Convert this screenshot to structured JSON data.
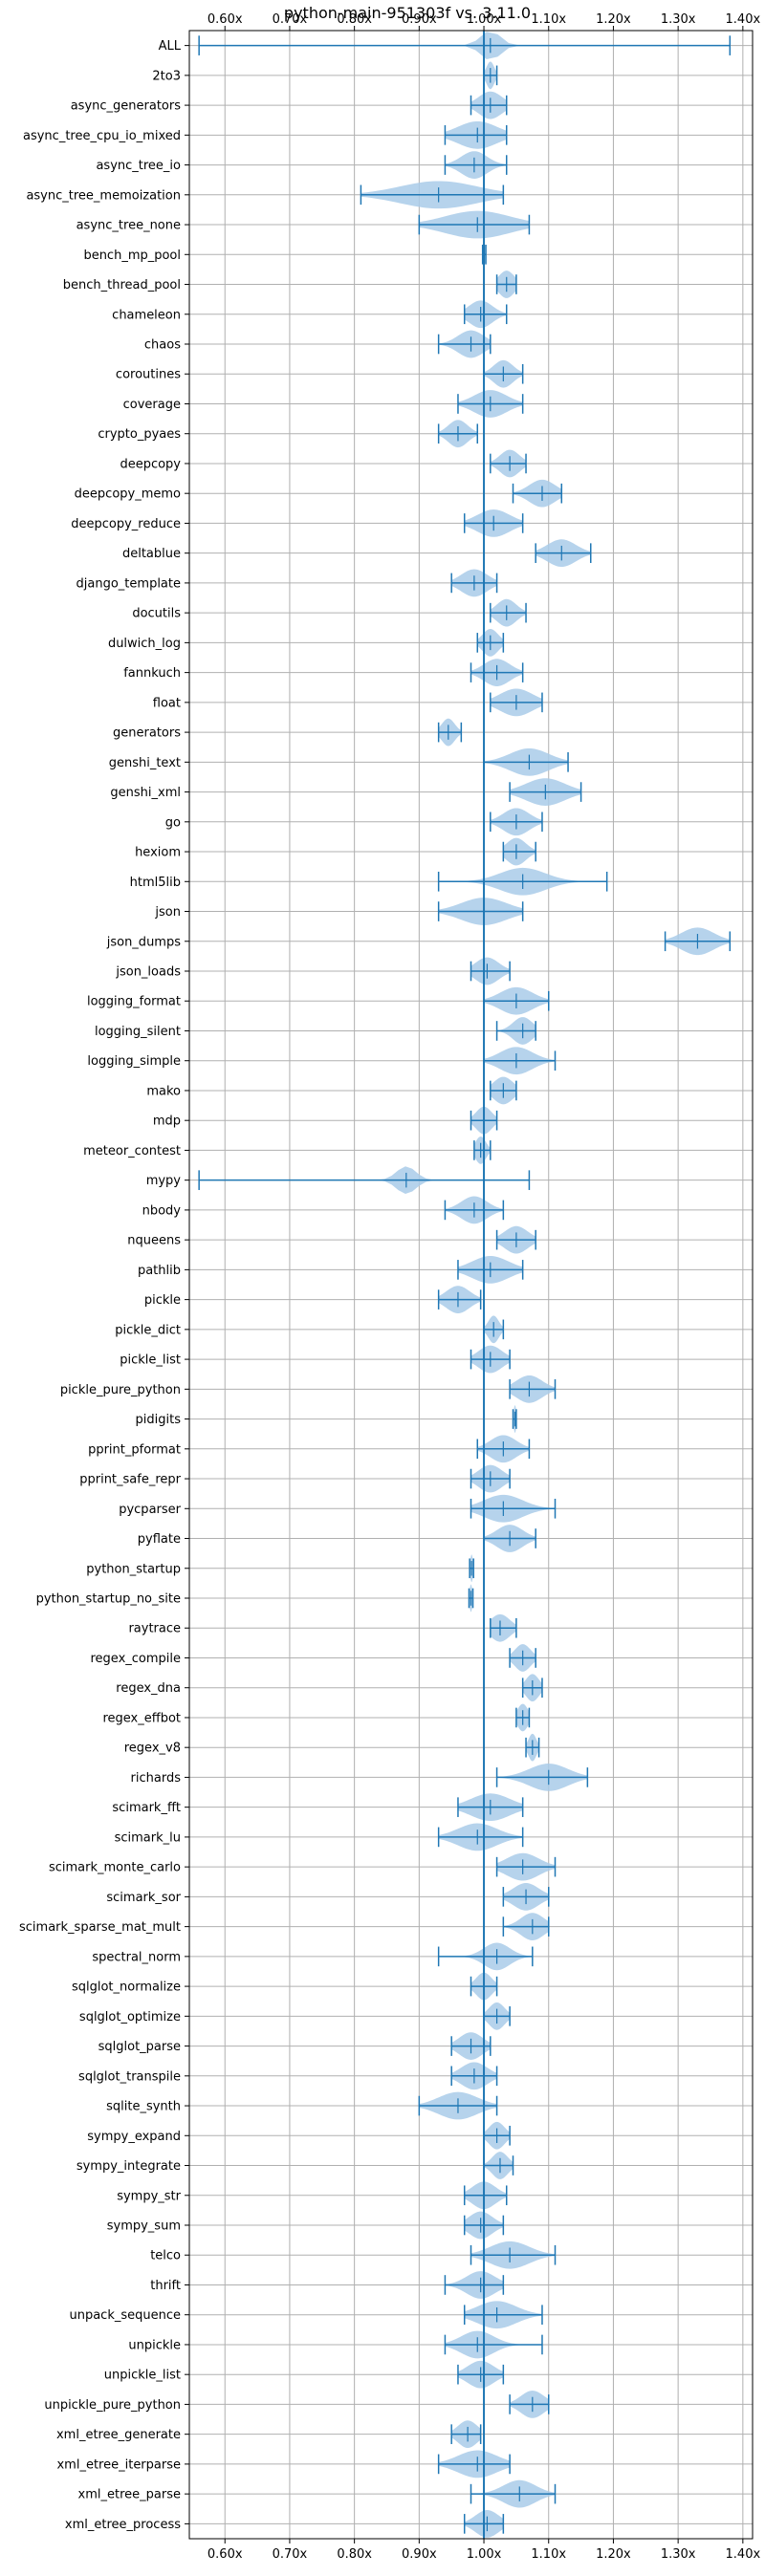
{
  "chart_data": {
    "type": "violin",
    "title": "python-main-951303f vs. 3.11.0",
    "orientation": "horizontal",
    "xlabel": "",
    "ylabel": "",
    "xlim": [
      0.545,
      1.415
    ],
    "xticks": [
      0.6,
      0.7,
      0.8,
      0.9,
      1.0,
      1.1,
      1.2,
      1.3,
      1.4
    ],
    "xtick_labels": [
      "0.60x",
      "0.70x",
      "0.80x",
      "0.90x",
      "1.00x",
      "1.10x",
      "1.20x",
      "1.30x",
      "1.40x"
    ],
    "xticks_position": "top-and-bottom",
    "grid": true,
    "reference_line": 1.0,
    "colors": {
      "violin_fill": "#a9cbe9",
      "accent": "#1f77b4",
      "grid": "#b0b0b0"
    },
    "benchmarks": [
      {
        "name": "ALL",
        "min": 0.56,
        "max": 1.38,
        "median": 1.01,
        "spread": 0.015
      },
      {
        "name": "2to3",
        "min": 1.0,
        "max": 1.02,
        "median": 1.01,
        "spread": 0.006
      },
      {
        "name": "async_generators",
        "min": 0.98,
        "max": 1.035,
        "median": 1.01,
        "spread": 0.018
      },
      {
        "name": "async_tree_cpu_io_mixed",
        "min": 0.94,
        "max": 1.035,
        "median": 0.99,
        "spread": 0.03
      },
      {
        "name": "async_tree_io",
        "min": 0.94,
        "max": 1.035,
        "median": 0.985,
        "spread": 0.02
      },
      {
        "name": "async_tree_memoization",
        "min": 0.81,
        "max": 1.03,
        "median": 0.93,
        "spread": 0.06
      },
      {
        "name": "async_tree_none",
        "min": 0.9,
        "max": 1.07,
        "median": 0.99,
        "spread": 0.05
      },
      {
        "name": "bench_mp_pool",
        "min": 0.998,
        "max": 1.003,
        "median": 1.0,
        "spread": 0.002
      },
      {
        "name": "bench_thread_pool",
        "min": 1.02,
        "max": 1.05,
        "median": 1.035,
        "spread": 0.012
      },
      {
        "name": "chameleon",
        "min": 0.97,
        "max": 1.035,
        "median": 0.995,
        "spread": 0.018
      },
      {
        "name": "chaos",
        "min": 0.93,
        "max": 1.01,
        "median": 0.98,
        "spread": 0.02
      },
      {
        "name": "coroutines",
        "min": 1.0,
        "max": 1.06,
        "median": 1.03,
        "spread": 0.015
      },
      {
        "name": "coverage",
        "min": 0.96,
        "max": 1.06,
        "median": 1.01,
        "spread": 0.025
      },
      {
        "name": "crypto_pyaes",
        "min": 0.93,
        "max": 0.99,
        "median": 0.96,
        "spread": 0.015
      },
      {
        "name": "deepcopy",
        "min": 1.01,
        "max": 1.065,
        "median": 1.04,
        "spread": 0.015
      },
      {
        "name": "deepcopy_memo",
        "min": 1.045,
        "max": 1.12,
        "median": 1.09,
        "spread": 0.02
      },
      {
        "name": "deepcopy_reduce",
        "min": 0.97,
        "max": 1.06,
        "median": 1.015,
        "spread": 0.025
      },
      {
        "name": "deltablue",
        "min": 1.08,
        "max": 1.165,
        "median": 1.12,
        "spread": 0.022
      },
      {
        "name": "django_template",
        "min": 0.95,
        "max": 1.02,
        "median": 0.985,
        "spread": 0.02
      },
      {
        "name": "docutils",
        "min": 1.01,
        "max": 1.065,
        "median": 1.035,
        "spread": 0.015
      },
      {
        "name": "dulwich_log",
        "min": 0.99,
        "max": 1.03,
        "median": 1.01,
        "spread": 0.012
      },
      {
        "name": "fannkuch",
        "min": 0.98,
        "max": 1.06,
        "median": 1.02,
        "spread": 0.02
      },
      {
        "name": "float",
        "min": 1.01,
        "max": 1.09,
        "median": 1.05,
        "spread": 0.025
      },
      {
        "name": "generators",
        "min": 0.93,
        "max": 0.965,
        "median": 0.945,
        "spread": 0.01
      },
      {
        "name": "genshi_text",
        "min": 1.0,
        "max": 1.13,
        "median": 1.07,
        "spread": 0.03
      },
      {
        "name": "genshi_xml",
        "min": 1.04,
        "max": 1.15,
        "median": 1.095,
        "spread": 0.03
      },
      {
        "name": "go",
        "min": 1.01,
        "max": 1.09,
        "median": 1.05,
        "spread": 0.02
      },
      {
        "name": "hexiom",
        "min": 1.03,
        "max": 1.08,
        "median": 1.05,
        "spread": 0.015
      },
      {
        "name": "html5lib",
        "min": 0.93,
        "max": 1.19,
        "median": 1.06,
        "spread": 0.035
      },
      {
        "name": "json",
        "min": 0.93,
        "max": 1.06,
        "median": 1.0,
        "spread": 0.035
      },
      {
        "name": "json_dumps",
        "min": 1.28,
        "max": 1.38,
        "median": 1.33,
        "spread": 0.025
      },
      {
        "name": "json_loads",
        "min": 0.98,
        "max": 1.04,
        "median": 1.005,
        "spread": 0.018
      },
      {
        "name": "logging_format",
        "min": 1.0,
        "max": 1.1,
        "median": 1.05,
        "spread": 0.025
      },
      {
        "name": "logging_silent",
        "min": 1.02,
        "max": 1.08,
        "median": 1.06,
        "spread": 0.015
      },
      {
        "name": "logging_simple",
        "min": 1.0,
        "max": 1.11,
        "median": 1.05,
        "spread": 0.025
      },
      {
        "name": "mako",
        "min": 1.01,
        "max": 1.05,
        "median": 1.03,
        "spread": 0.015
      },
      {
        "name": "mdp",
        "min": 0.98,
        "max": 1.02,
        "median": 1.0,
        "spread": 0.012
      },
      {
        "name": "meteor_contest",
        "min": 0.985,
        "max": 1.01,
        "median": 0.995,
        "spread": 0.008
      },
      {
        "name": "mypy",
        "min": 0.56,
        "max": 1.07,
        "median": 0.88,
        "spread": 0.015
      },
      {
        "name": "nbody",
        "min": 0.94,
        "max": 1.03,
        "median": 0.985,
        "spread": 0.02
      },
      {
        "name": "nqueens",
        "min": 1.02,
        "max": 1.08,
        "median": 1.05,
        "spread": 0.018
      },
      {
        "name": "pathlib",
        "min": 0.96,
        "max": 1.06,
        "median": 1.01,
        "spread": 0.028
      },
      {
        "name": "pickle",
        "min": 0.93,
        "max": 0.995,
        "median": 0.96,
        "spread": 0.018
      },
      {
        "name": "pickle_dict",
        "min": 1.0,
        "max": 1.03,
        "median": 1.015,
        "spread": 0.008
      },
      {
        "name": "pickle_list",
        "min": 0.98,
        "max": 1.04,
        "median": 1.01,
        "spread": 0.018
      },
      {
        "name": "pickle_pure_python",
        "min": 1.04,
        "max": 1.11,
        "median": 1.07,
        "spread": 0.02
      },
      {
        "name": "pidigits",
        "min": 1.045,
        "max": 1.05,
        "median": 1.048,
        "spread": 0.002
      },
      {
        "name": "pprint_pformat",
        "min": 0.99,
        "max": 1.07,
        "median": 1.03,
        "spread": 0.02
      },
      {
        "name": "pprint_safe_repr",
        "min": 0.98,
        "max": 1.04,
        "median": 1.01,
        "spread": 0.018
      },
      {
        "name": "pycparser",
        "min": 0.98,
        "max": 1.11,
        "median": 1.03,
        "spread": 0.03
      },
      {
        "name": "pyflate",
        "min": 1.0,
        "max": 1.08,
        "median": 1.04,
        "spread": 0.02
      },
      {
        "name": "python_startup",
        "min": 0.978,
        "max": 0.984,
        "median": 0.981,
        "spread": 0.002
      },
      {
        "name": "python_startup_no_site",
        "min": 0.977,
        "max": 0.983,
        "median": 0.98,
        "spread": 0.002
      },
      {
        "name": "raytrace",
        "min": 1.01,
        "max": 1.05,
        "median": 1.025,
        "spread": 0.015
      },
      {
        "name": "regex_compile",
        "min": 1.04,
        "max": 1.08,
        "median": 1.06,
        "spread": 0.012
      },
      {
        "name": "regex_dna",
        "min": 1.06,
        "max": 1.09,
        "median": 1.075,
        "spread": 0.01
      },
      {
        "name": "regex_effbot",
        "min": 1.05,
        "max": 1.07,
        "median": 1.06,
        "spread": 0.008
      },
      {
        "name": "regex_v8",
        "min": 1.065,
        "max": 1.085,
        "median": 1.075,
        "spread": 0.006
      },
      {
        "name": "richards",
        "min": 1.02,
        "max": 1.16,
        "median": 1.1,
        "spread": 0.03
      },
      {
        "name": "scimark_fft",
        "min": 0.96,
        "max": 1.06,
        "median": 1.01,
        "spread": 0.03
      },
      {
        "name": "scimark_lu",
        "min": 0.93,
        "max": 1.06,
        "median": 0.99,
        "spread": 0.03
      },
      {
        "name": "scimark_monte_carlo",
        "min": 1.02,
        "max": 1.11,
        "median": 1.06,
        "spread": 0.025
      },
      {
        "name": "scimark_sor",
        "min": 1.03,
        "max": 1.1,
        "median": 1.065,
        "spread": 0.02
      },
      {
        "name": "scimark_sparse_mat_mult",
        "min": 1.03,
        "max": 1.1,
        "median": 1.075,
        "spread": 0.018
      },
      {
        "name": "spectral_norm",
        "min": 0.93,
        "max": 1.075,
        "median": 1.02,
        "spread": 0.02
      },
      {
        "name": "sqlglot_normalize",
        "min": 0.98,
        "max": 1.02,
        "median": 1.0,
        "spread": 0.012
      },
      {
        "name": "sqlglot_optimize",
        "min": 1.0,
        "max": 1.04,
        "median": 1.02,
        "spread": 0.012
      },
      {
        "name": "sqlglot_parse",
        "min": 0.95,
        "max": 1.01,
        "median": 0.98,
        "spread": 0.018
      },
      {
        "name": "sqlglot_transpile",
        "min": 0.95,
        "max": 1.02,
        "median": 0.985,
        "spread": 0.02
      },
      {
        "name": "sqlite_synth",
        "min": 0.9,
        "max": 1.02,
        "median": 0.96,
        "spread": 0.03
      },
      {
        "name": "sympy_expand",
        "min": 1.0,
        "max": 1.04,
        "median": 1.02,
        "spread": 0.012
      },
      {
        "name": "sympy_integrate",
        "min": 1.0,
        "max": 1.045,
        "median": 1.025,
        "spread": 0.012
      },
      {
        "name": "sympy_str",
        "min": 0.97,
        "max": 1.035,
        "median": 1.0,
        "spread": 0.018
      },
      {
        "name": "sympy_sum",
        "min": 0.97,
        "max": 1.03,
        "median": 0.995,
        "spread": 0.018
      },
      {
        "name": "telco",
        "min": 0.98,
        "max": 1.11,
        "median": 1.04,
        "spread": 0.03
      },
      {
        "name": "thrift",
        "min": 0.94,
        "max": 1.03,
        "median": 0.995,
        "spread": 0.022
      },
      {
        "name": "unpack_sequence",
        "min": 0.97,
        "max": 1.09,
        "median": 1.02,
        "spread": 0.03
      },
      {
        "name": "unpickle",
        "min": 0.94,
        "max": 1.09,
        "median": 0.99,
        "spread": 0.025
      },
      {
        "name": "unpickle_list",
        "min": 0.96,
        "max": 1.03,
        "median": 0.995,
        "spread": 0.02
      },
      {
        "name": "unpickle_pure_python",
        "min": 1.04,
        "max": 1.1,
        "median": 1.075,
        "spread": 0.018
      },
      {
        "name": "xml_etree_generate",
        "min": 0.95,
        "max": 0.995,
        "median": 0.975,
        "spread": 0.015
      },
      {
        "name": "xml_etree_iterparse",
        "min": 0.93,
        "max": 1.04,
        "median": 0.99,
        "spread": 0.03
      },
      {
        "name": "xml_etree_parse",
        "min": 0.98,
        "max": 1.11,
        "median": 1.055,
        "spread": 0.025
      },
      {
        "name": "xml_etree_process",
        "min": 0.97,
        "max": 1.03,
        "median": 1.005,
        "spread": 0.018
      }
    ]
  }
}
